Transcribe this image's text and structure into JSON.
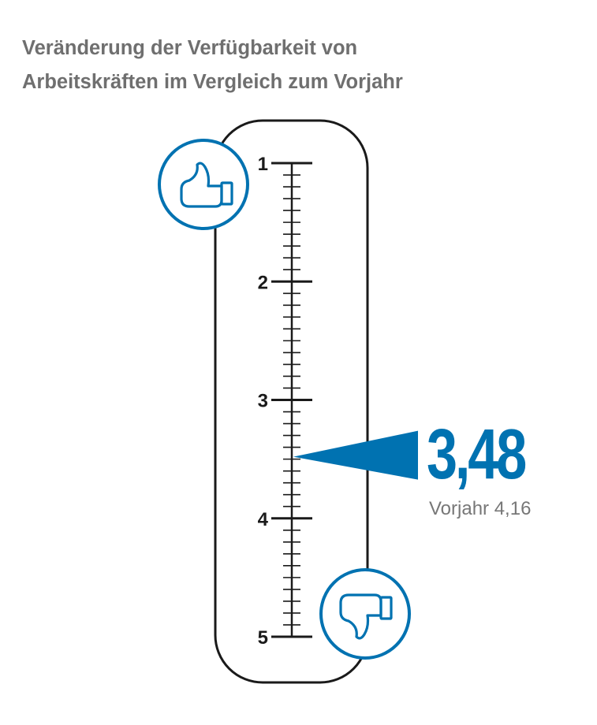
{
  "title_lines": [
    "Veränderung der Verfügbarkeit von",
    "Arbeitskräften im Vergleich zum Vorjahr"
  ],
  "colors": {
    "accent": "#0072b1",
    "text": "#6f6f6f",
    "scale": "#1a1a1a"
  },
  "icons": {
    "top": "thumbs-up-icon",
    "bottom": "thumbs-down-icon"
  },
  "chart_data": {
    "type": "gauge",
    "scale": {
      "min": 1,
      "max": 5,
      "major_ticks": [
        1,
        2,
        3,
        4,
        5
      ],
      "minor_per_unit": 10
    },
    "tick_labels": [
      "1",
      "2",
      "3",
      "4",
      "5"
    ],
    "value": 3.48,
    "value_label": "3,48",
    "previous_label": "Vorjahr 4,16",
    "previous_value": 4.16
  }
}
